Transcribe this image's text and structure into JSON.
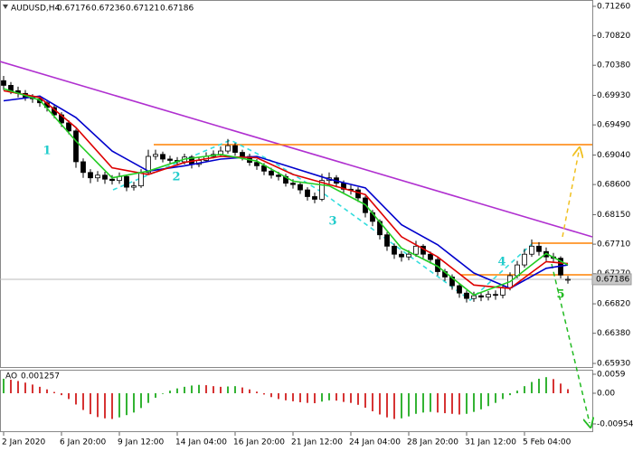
{
  "chart_data": {
    "type": "candlestick",
    "symbol": "AUDUSD,H4",
    "open": [
      0.7015,
      0.7008,
      0.7,
      0.6996,
      0.699,
      0.6988,
      0.6982,
      0.6975,
      0.6964,
      0.6952,
      0.694,
      0.6894,
      0.6878,
      0.687,
      0.6874,
      0.6868,
      0.6866,
      0.6872,
      0.6856,
      0.6858,
      0.6878,
      0.6902,
      0.6905,
      0.6898,
      0.6896,
      0.6894,
      0.6901,
      0.689,
      0.6896,
      0.6902,
      0.6905,
      0.691,
      0.6918,
      0.6908,
      0.6902,
      0.6893,
      0.6888,
      0.688,
      0.6874,
      0.6872,
      0.6862,
      0.686,
      0.6852,
      0.6842,
      0.6838,
      0.6866,
      0.687,
      0.6862,
      0.6853,
      0.6852,
      0.684,
      0.6818,
      0.6805,
      0.6785,
      0.6768,
      0.6756,
      0.6752,
      0.6756,
      0.6768,
      0.6756,
      0.6748,
      0.673,
      0.6722,
      0.6709,
      0.6698,
      0.669,
      0.6694,
      0.6692,
      0.6696,
      0.6695,
      0.6706,
      0.6724,
      0.674,
      0.6756,
      0.6768,
      0.676,
      0.6752,
      0.675,
      0.67176
    ],
    "high": [
      0.7022,
      0.7013,
      0.7006,
      0.7001,
      0.6995,
      0.6993,
      0.6986,
      0.6979,
      0.6968,
      0.6956,
      0.6943,
      0.6899,
      0.6883,
      0.688,
      0.6879,
      0.6874,
      0.6878,
      0.6875,
      0.6864,
      0.6883,
      0.6912,
      0.6912,
      0.6909,
      0.6903,
      0.6901,
      0.6906,
      0.6904,
      0.6901,
      0.6908,
      0.6911,
      0.6917,
      0.6928,
      0.6922,
      0.6912,
      0.6906,
      0.6898,
      0.6892,
      0.6885,
      0.6879,
      0.6876,
      0.6868,
      0.6864,
      0.6856,
      0.6848,
      0.6876,
      0.6878,
      0.6874,
      0.6866,
      0.6859,
      0.6856,
      0.6843,
      0.6822,
      0.6808,
      0.6789,
      0.6772,
      0.6761,
      0.6762,
      0.6776,
      0.6771,
      0.676,
      0.6751,
      0.6734,
      0.6726,
      0.6712,
      0.6702,
      0.67,
      0.6699,
      0.6701,
      0.6702,
      0.6711,
      0.6729,
      0.6746,
      0.6764,
      0.6778,
      0.6774,
      0.6766,
      0.6758,
      0.6753,
      0.67236
    ],
    "low": [
      0.7001,
      0.6995,
      0.699,
      0.6985,
      0.6982,
      0.6976,
      0.6969,
      0.6959,
      0.6946,
      0.6935,
      0.6885,
      0.687,
      0.6862,
      0.6864,
      0.6861,
      0.686,
      0.6861,
      0.685,
      0.6851,
      0.6855,
      0.6876,
      0.6897,
      0.6893,
      0.6891,
      0.6888,
      0.689,
      0.6884,
      0.6886,
      0.6893,
      0.6899,
      0.6902,
      0.6906,
      0.6903,
      0.6896,
      0.6888,
      0.6882,
      0.6874,
      0.6869,
      0.6866,
      0.6857,
      0.6854,
      0.6846,
      0.6836,
      0.6832,
      0.6835,
      0.6861,
      0.6856,
      0.6847,
      0.6845,
      0.6834,
      0.6811,
      0.6798,
      0.6778,
      0.6761,
      0.6749,
      0.6745,
      0.6747,
      0.6752,
      0.675,
      0.6742,
      0.6724,
      0.6716,
      0.6703,
      0.6691,
      0.6684,
      0.6685,
      0.6686,
      0.6687,
      0.6688,
      0.669,
      0.6702,
      0.672,
      0.6736,
      0.6752,
      0.6754,
      0.6746,
      0.6743,
      0.672,
      0.67121
    ],
    "close": [
      0.7008,
      0.7,
      0.6996,
      0.699,
      0.6988,
      0.6982,
      0.6975,
      0.6964,
      0.6952,
      0.694,
      0.6894,
      0.6878,
      0.687,
      0.6874,
      0.6868,
      0.6866,
      0.6872,
      0.6856,
      0.6858,
      0.6878,
      0.6902,
      0.6905,
      0.6898,
      0.6896,
      0.6894,
      0.6901,
      0.689,
      0.6896,
      0.6902,
      0.6905,
      0.691,
      0.6918,
      0.6908,
      0.6902,
      0.6893,
      0.6888,
      0.688,
      0.6874,
      0.6872,
      0.6862,
      0.686,
      0.6852,
      0.6842,
      0.6838,
      0.6866,
      0.687,
      0.6862,
      0.6853,
      0.6852,
      0.684,
      0.6818,
      0.6805,
      0.6785,
      0.6768,
      0.6756,
      0.6752,
      0.6756,
      0.6768,
      0.6756,
      0.6748,
      0.673,
      0.6722,
      0.6709,
      0.6698,
      0.669,
      0.6694,
      0.6692,
      0.6696,
      0.6695,
      0.6706,
      0.6724,
      0.674,
      0.6756,
      0.6768,
      0.676,
      0.6752,
      0.675,
      0.6725,
      0.67186
    ],
    "up_color": "#ffffff",
    "down_color": "#000000",
    "xlim": [
      -0.5,
      81.375
    ],
    "xticks": [
      {
        "value": 0,
        "label": "2 Jan 2020"
      },
      {
        "value": 8,
        "label": "6 Jan 20:00"
      },
      {
        "value": 16,
        "label": "9 Jan 12:00"
      },
      {
        "value": 24,
        "label": "14 Jan 04:00"
      },
      {
        "value": 32,
        "label": "16 Jan 20:00"
      },
      {
        "value": 40,
        "label": "21 Jan 12:00"
      },
      {
        "value": 48,
        "label": "24 Jan 04:00"
      },
      {
        "value": 56,
        "label": "28 Jan 20:00"
      },
      {
        "value": 64,
        "label": "31 Jan 12:00"
      },
      {
        "value": 72,
        "label": "5 Feb 04:00"
      }
    ],
    "ylim": [
      0.65863,
      0.71354
    ],
    "yticks": [
      {
        "value": 0.7126,
        "label": "0.71260"
      },
      {
        "value": 0.7082,
        "label": "0.70820"
      },
      {
        "value": 0.7038,
        "label": "0.70380"
      },
      {
        "value": 0.6993,
        "label": "0.69930"
      },
      {
        "value": 0.6949,
        "label": "0.69490"
      },
      {
        "value": 0.6904,
        "label": "0.69040"
      },
      {
        "value": 0.686,
        "label": "0.68600"
      },
      {
        "value": 0.6815,
        "label": "0.68150"
      },
      {
        "value": 0.6771,
        "label": "0.67710"
      },
      {
        "value": 0.6727,
        "label": "0.67270"
      },
      {
        "value": 0.6682,
        "label": "0.66820"
      },
      {
        "value": 0.6638,
        "label": "0.66380"
      },
      {
        "value": 0.6593,
        "label": "0.65930"
      }
    ],
    "moving_averages": [
      {
        "color": "#0000cc",
        "x": [
          0,
          5,
          10,
          15,
          20,
          25,
          30,
          35,
          40,
          45,
          50,
          55,
          60,
          65,
          70,
          75,
          78
        ],
        "values": [
          0.6985,
          0.6992,
          0.696,
          0.691,
          0.688,
          0.6888,
          0.6898,
          0.6902,
          0.6885,
          0.6868,
          0.6855,
          0.68,
          0.677,
          0.6728,
          0.6705,
          0.6735,
          0.674
        ]
      },
      {
        "color": "#dd0000",
        "x": [
          0,
          5,
          10,
          15,
          20,
          25,
          30,
          35,
          40,
          45,
          50,
          55,
          60,
          65,
          70,
          75,
          78
        ],
        "values": [
          0.7,
          0.699,
          0.6945,
          0.6885,
          0.6875,
          0.6893,
          0.6902,
          0.69,
          0.6875,
          0.686,
          0.6845,
          0.6782,
          0.6752,
          0.671,
          0.6705,
          0.6745,
          0.6742
        ]
      },
      {
        "color": "#22cc22",
        "x": [
          0,
          5,
          10,
          15,
          20,
          25,
          30,
          35,
          40,
          45,
          50,
          55,
          60,
          65,
          70,
          75,
          78
        ],
        "values": [
          0.7003,
          0.6986,
          0.6925,
          0.687,
          0.688,
          0.6898,
          0.6905,
          0.6895,
          0.6865,
          0.6858,
          0.683,
          0.6765,
          0.6738,
          0.6695,
          0.6715,
          0.6757,
          0.674
        ]
      }
    ],
    "annotations": [
      "1",
      "2",
      "3",
      "4",
      "5"
    ],
    "indicator": {
      "type": "bar",
      "name": "AO",
      "up_color": "#00a000",
      "down_color": "#cc0000",
      "ylim": [
        -0.01208,
        0.0073
      ],
      "yticks": [
        0.0059,
        {
          "value": 0,
          "label": "0.00"
        },
        -0.009543
      ],
      "values": [
        0.0045,
        0.0042,
        0.0038,
        0.0033,
        0.0027,
        0.002,
        0.0012,
        0.0004,
        -0.0006,
        -0.0018,
        -0.0035,
        -0.0052,
        -0.0065,
        -0.0074,
        -0.0078,
        -0.008,
        -0.0075,
        -0.0068,
        -0.006,
        -0.0046,
        -0.003,
        -0.0014,
        -0.0002,
        0.0008,
        0.0015,
        0.002,
        0.0024,
        0.0026,
        0.0025,
        0.0022,
        0.002,
        0.0021,
        0.0022,
        0.0018,
        0.0012,
        0.0005,
        -0.0004,
        -0.0012,
        -0.0018,
        -0.0022,
        -0.0025,
        -0.0028,
        -0.003,
        -0.0031,
        -0.0026,
        -0.0022,
        -0.0023,
        -0.0027,
        -0.003,
        -0.0036,
        -0.0045,
        -0.0056,
        -0.0066,
        -0.0075,
        -0.008,
        -0.0078,
        -0.0072,
        -0.0064,
        -0.006,
        -0.0058,
        -0.006,
        -0.0062,
        -0.0064,
        -0.0066,
        -0.0064,
        -0.0058,
        -0.005,
        -0.004,
        -0.003,
        -0.0018,
        -0.0006,
        0.0008,
        0.0022,
        0.0035,
        0.0045,
        0.005,
        0.0044,
        0.003,
        0.001257
      ]
    }
  }
}
